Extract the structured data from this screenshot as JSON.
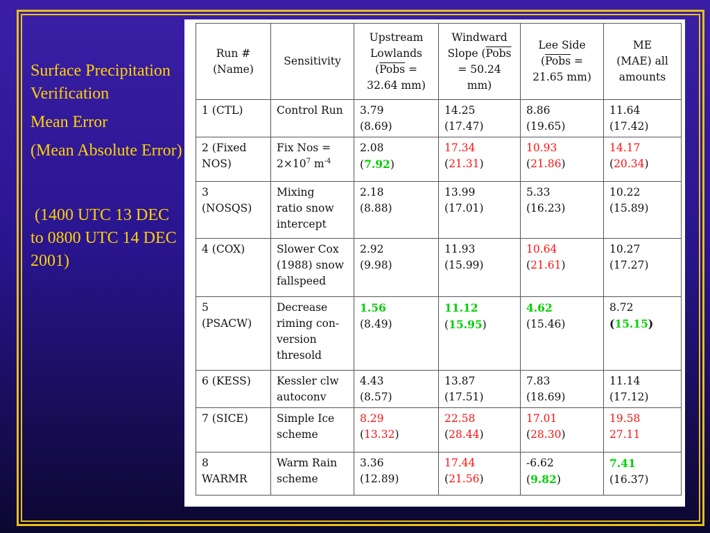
{
  "side": {
    "title": "Surface Precipitation Verification",
    "metric": "Mean Error",
    "metric2": "(Mean Absolute Error)",
    "period": " (1400 UTC 13 DEC to 0800 UTC 14 DEC 2001)"
  },
  "colors": {
    "frame": "#e8c018",
    "side_text": "#ffd200",
    "worse": "#ff1010",
    "better": "#00d000"
  },
  "header": {
    "run": [
      "Run #",
      "(Name)"
    ],
    "sens": "Sensitivity",
    "up": [
      "Upstream",
      "Lowlands",
      "(",
      "Pobs",
      " =",
      "32.64 mm)"
    ],
    "wind": [
      "Windward",
      "Slope (",
      "Pobs",
      "= 50.24",
      "mm)"
    ],
    "lee": [
      "Lee Side",
      "(",
      "Pobs",
      " =",
      "21.65 mm)"
    ],
    "me": [
      "ME",
      "(MAE) all",
      "amounts"
    ]
  },
  "rows": [
    {
      "run": [
        "1 (CTL)"
      ],
      "sens": [
        "Control Run"
      ],
      "up": [
        "3.79",
        "(8.69)"
      ],
      "wind": [
        "14.25",
        "(17.47)"
      ],
      "lee": [
        "8.86",
        "(19.65)"
      ],
      "me": [
        "11.64",
        "(17.42)"
      ]
    },
    {
      "run": [
        "2 (Fixed",
        "NOS)"
      ],
      "sens": [
        "Fix Nos =",
        "2×10",
        "7",
        " m",
        "-4"
      ],
      "up": [
        "2.08",
        "(",
        "7.92",
        ")"
      ],
      "wind": [
        "17.34",
        "(",
        "21.31",
        ")"
      ],
      "lee": [
        "10.93",
        "(",
        "21.86",
        ")"
      ],
      "me": [
        "14.17",
        "(",
        "20.34",
        ")"
      ]
    },
    {
      "run": [
        "3",
        "(NOSQS)"
      ],
      "sens": [
        "Mixing",
        "ratio snow",
        "intercept"
      ],
      "up": [
        "2.18",
        "(8.88)"
      ],
      "wind": [
        "13.99",
        "(17.01)"
      ],
      "lee": [
        "5.33",
        "(16.23)"
      ],
      "me": [
        "10.22",
        "(15.89)"
      ]
    },
    {
      "run": [
        "4 (COX)"
      ],
      "sens": [
        "Slower Cox",
        "(1988) snow",
        "fallspeed"
      ],
      "up": [
        "2.92",
        "(9.98)"
      ],
      "wind": [
        "11.93",
        "(15.99)"
      ],
      "lee": [
        "10.64",
        "(",
        "21.61",
        ")"
      ],
      "me": [
        "10.27",
        "(17.27)"
      ]
    },
    {
      "run": [
        "5",
        "(PSACW)"
      ],
      "sens": [
        "Decrease",
        "riming con-",
        "version",
        "thresold"
      ],
      "up": [
        "1.56",
        "(8.49)"
      ],
      "wind": [
        "11.12",
        "(",
        "15.95",
        ")"
      ],
      "lee": [
        "4.62",
        "(15.46)"
      ],
      "me": [
        "8.72",
        "(",
        "15.15",
        ")"
      ]
    },
    {
      "run": [
        "6 (KESS)"
      ],
      "sens": [
        "Kessler clw",
        "autoconv"
      ],
      "up": [
        "4.43",
        "(8.57)"
      ],
      "wind": [
        "13.87",
        "(17.51)"
      ],
      "lee": [
        "7.83",
        "(18.69)"
      ],
      "me": [
        "11.14",
        "(17.12)"
      ]
    },
    {
      "run": [
        "7 (SICE)"
      ],
      "sens": [
        "Simple Ice",
        "scheme"
      ],
      "up": [
        "8.29",
        "(",
        "13.32",
        ")"
      ],
      "wind": [
        "22.58",
        "(",
        "28.44",
        ")"
      ],
      "lee": [
        "17.01",
        "(",
        "28.30",
        ")"
      ],
      "me": [
        "19.58",
        "27.11"
      ]
    },
    {
      "run": [
        "8",
        "WARMR"
      ],
      "sens": [
        "Warm Rain",
        "scheme"
      ],
      "up": [
        "3.36",
        "(12.89)"
      ],
      "wind": [
        "17.44",
        "(",
        "21.56",
        ")"
      ],
      "lee": [
        "-6.62",
        "(",
        "9.82",
        ")"
      ],
      "me": [
        "7.41",
        "(16.37)"
      ]
    }
  ]
}
